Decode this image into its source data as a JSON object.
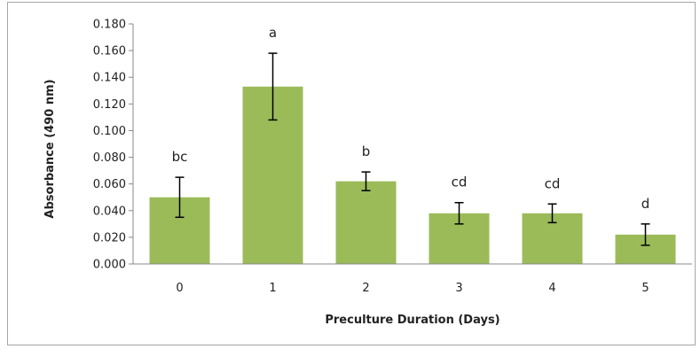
{
  "chart_data": {
    "type": "bar",
    "title": "",
    "xlabel": "Preculture Duration (Days)",
    "ylabel": "Absorbance (490 nm)",
    "categories": [
      "0",
      "1",
      "2",
      "3",
      "4",
      "5"
    ],
    "values": [
      0.05,
      0.133,
      0.062,
      0.038,
      0.038,
      0.022
    ],
    "error": [
      0.015,
      0.025,
      0.007,
      0.008,
      0.007,
      0.008
    ],
    "annotations": [
      "bc",
      "a",
      "b",
      "cd",
      "cd",
      "d"
    ],
    "ylim": [
      0,
      0.18
    ],
    "yticks": [
      "0.000",
      "0.020",
      "0.040",
      "0.060",
      "0.080",
      "0.100",
      "0.120",
      "0.140",
      "0.160",
      "0.180"
    ],
    "bar_color": "#9bbb59",
    "grid": false,
    "legend": "none"
  }
}
